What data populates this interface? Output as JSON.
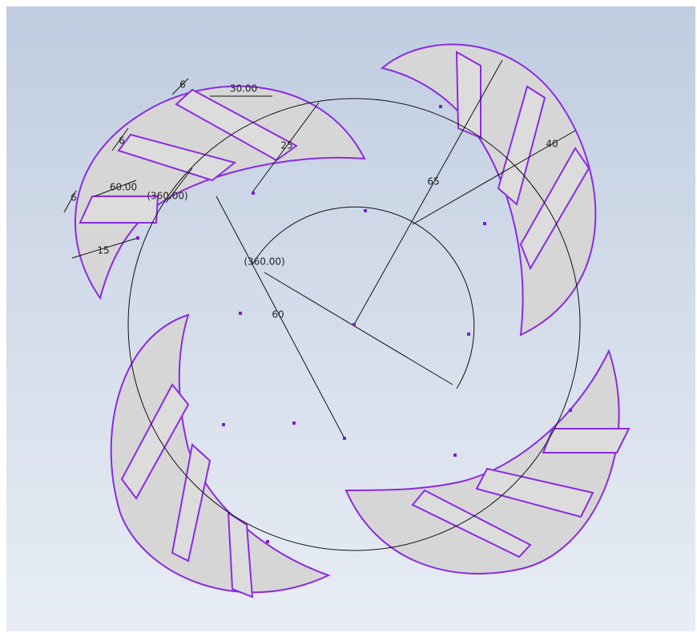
{
  "dimensions": [
    {
      "label": "30.00"
    },
    {
      "label": "25"
    },
    {
      "label": "60.00"
    },
    {
      "label": "(360.00)"
    },
    {
      "label": "15"
    },
    {
      "label": "6"
    },
    {
      "label": "6"
    },
    {
      "label": "6"
    },
    {
      "label": "65"
    },
    {
      "label": "40"
    },
    {
      "label": "(360.00)"
    },
    {
      "label": "60"
    }
  ]
}
